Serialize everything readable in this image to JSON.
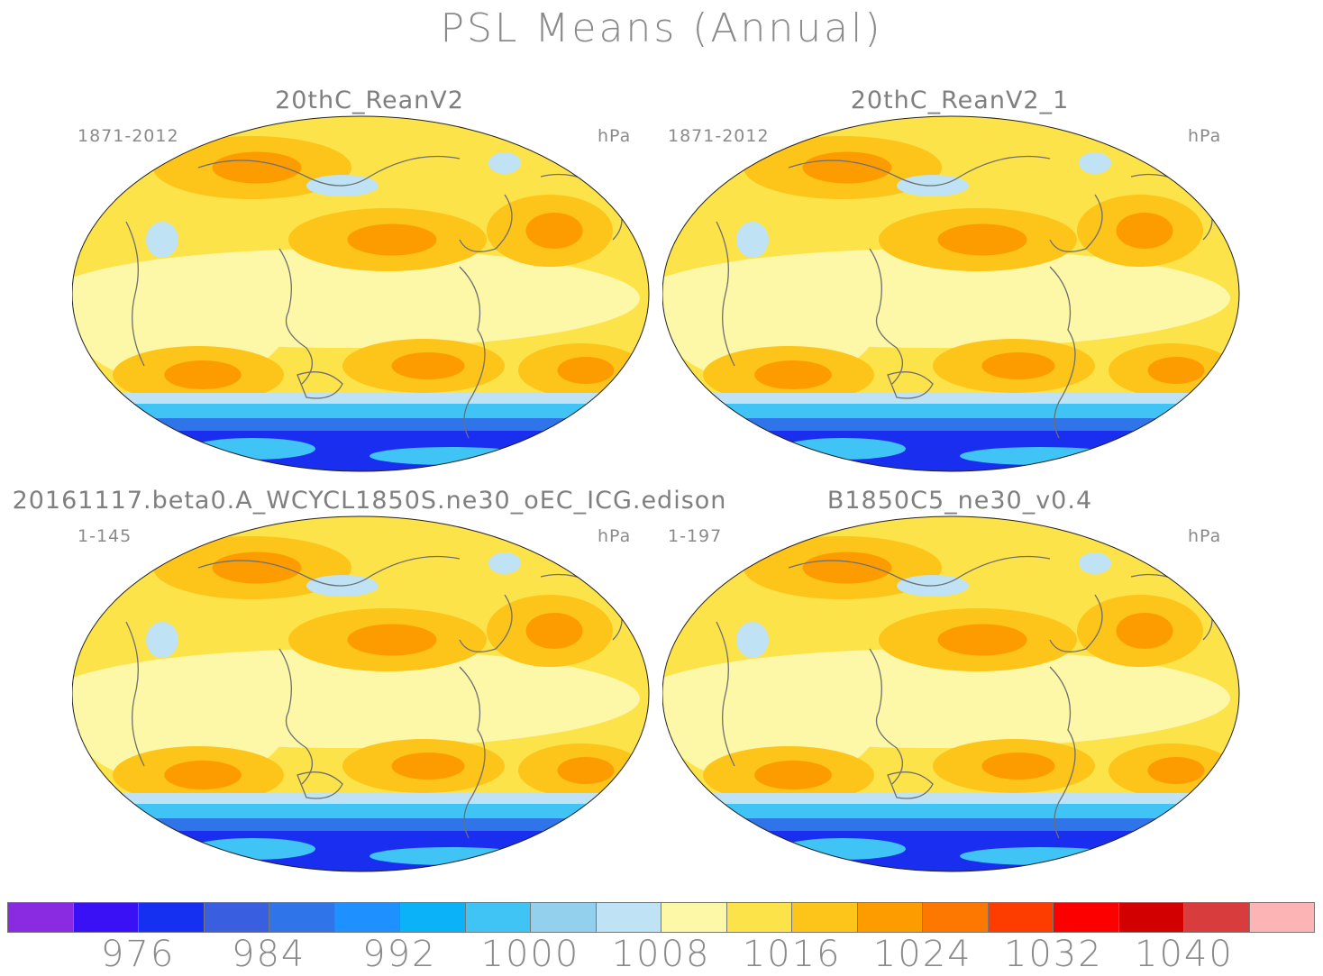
{
  "title": "PSL Means (Annual)",
  "panels": [
    {
      "title": "20thC_ReanV2",
      "years": "1871-2012",
      "units": "hPa"
    },
    {
      "title": "20thC_ReanV2_1",
      "years": "1871-2012",
      "units": "hPa"
    },
    {
      "title": "20161117.beta0.A_WCYCL1850S.ne30_oEC_ICG.edison",
      "years": "1-145",
      "units": "hPa"
    },
    {
      "title": "B1850C5_ne30_v0.4",
      "years": "1-197",
      "units": "hPa"
    }
  ],
  "colorbar": {
    "colors": [
      "#8a2be2",
      "#3a10f5",
      "#1530f0",
      "#3a5ee0",
      "#2f74e8",
      "#1e90ff",
      "#0bb2f8",
      "#40c4f5",
      "#93d0ee",
      "#bfe2f5",
      "#fdf7a8",
      "#fde34a",
      "#fdc419",
      "#fd9c00",
      "#fd7800",
      "#fd3c00",
      "#fc0000",
      "#d30000",
      "#d83c3c",
      "#fcb4b4"
    ],
    "labels": [
      "976",
      "984",
      "992",
      "1000",
      "1008",
      "1016",
      "1024",
      "1032",
      "1040"
    ]
  },
  "palette": {
    "low_blue_dark": "#1a2ef0",
    "low_blue": "#2f74e8",
    "low_blue_light": "#40c4f5",
    "pale_blue": "#bfe2f5",
    "pale_yellow": "#fdf7a8",
    "yellow": "#fde34a",
    "gold": "#fdc419",
    "orange": "#fd9c00",
    "coast": "#6f6f6f"
  }
}
